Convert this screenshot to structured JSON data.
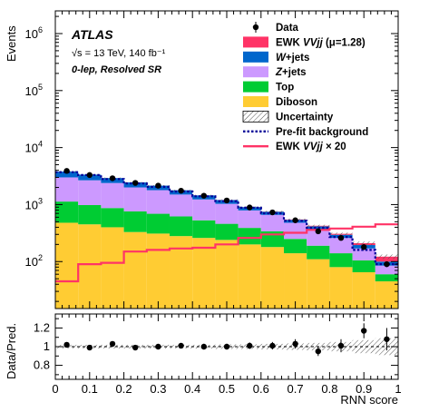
{
  "chart_data": {
    "type": "bar",
    "stacked": true,
    "experiment": "ATLAS",
    "energy_label": "√s = 13 TeV, 140 fb⁻¹",
    "region_label": "0-lep, Resolved SR",
    "xlabel": "RNN score",
    "ylabel_main": "Events",
    "ylabel_ratio": "Data/Pred.",
    "xlim": [
      0,
      1
    ],
    "ylim_main": [
      15,
      2500000
    ],
    "ylim_ratio": [
      0.65,
      1.35
    ],
    "yscale_main": "log",
    "x_ticks": [
      "0",
      "0.1",
      "0.2",
      "0.3",
      "0.4",
      "0.5",
      "0.6",
      "0.7",
      "0.8",
      "0.9",
      "1"
    ],
    "y_ticks_main": [
      {
        "base": "10",
        "exp": "2",
        "value": 100
      },
      {
        "base": "10",
        "exp": "3",
        "value": 1000
      },
      {
        "base": "10",
        "exp": "4",
        "value": 10000
      },
      {
        "base": "10",
        "exp": "5",
        "value": 100000
      },
      {
        "base": "10",
        "exp": "6",
        "value": 1000000
      }
    ],
    "y_ticks_ratio": [
      "0.8",
      "1",
      "1.2"
    ],
    "bin_edges": [
      0,
      0.0667,
      0.1333,
      0.2,
      0.2667,
      0.3333,
      0.4,
      0.4667,
      0.5333,
      0.6,
      0.6667,
      0.7333,
      0.8,
      0.8667,
      0.9333,
      1
    ],
    "series": [
      {
        "name": "Diboson",
        "color": "#FFCC33",
        "values": [
          480,
          450,
          400,
          330,
          310,
          280,
          260,
          240,
          200,
          180,
          140,
          110,
          80,
          65,
          45
        ]
      },
      {
        "name": "Top",
        "color": "#00CC33",
        "values": [
          650,
          530,
          470,
          430,
          380,
          340,
          270,
          220,
          190,
          160,
          110,
          80,
          60,
          40,
          15
        ]
      },
      {
        "name": "Z+jets",
        "color": "#CC99FF",
        "values": [
          1870,
          1690,
          1520,
          1240,
          1100,
          880,
          700,
          570,
          400,
          320,
          230,
          180,
          120,
          65,
          25
        ]
      },
      {
        "name": "W+jets",
        "color": "#0066CC",
        "values": [
          800,
          680,
          530,
          450,
          360,
          280,
          220,
          170,
          110,
          90,
          60,
          45,
          35,
          25,
          15
        ]
      },
      {
        "name": "EWK VVjj (μ=1.28)",
        "color": "#FF3366",
        "values": [
          3,
          3,
          3,
          3,
          3,
          3,
          3,
          4,
          5,
          6,
          8,
          10,
          12,
          15,
          22
        ]
      }
    ],
    "data_points": {
      "name": "Data",
      "x": [
        0.0333,
        0.1,
        0.1667,
        0.2333,
        0.3,
        0.3667,
        0.4333,
        0.5,
        0.5667,
        0.6333,
        0.7,
        0.7667,
        0.8333,
        0.9,
        0.9667
      ],
      "y": [
        3900,
        3300,
        2900,
        2400,
        2150,
        1750,
        1430,
        1180,
        890,
        730,
        530,
        340,
        260,
        180,
        90
      ]
    },
    "prefit_background": {
      "name": "Pre-fit background",
      "values": [
        3700,
        3300,
        2800,
        2350,
        2050,
        1700,
        1400,
        1150,
        880,
        700,
        520,
        390,
        270,
        160,
        90
      ]
    },
    "signal_x20": {
      "name": "EWK VVjj × 20",
      "color": "#FF3366",
      "values": [
        45,
        90,
        95,
        150,
        160,
        170,
        175,
        200,
        260,
        300,
        320,
        360,
        380,
        410,
        450
      ]
    },
    "ratio": {
      "x": [
        0.0333,
        0.1,
        0.1667,
        0.2333,
        0.3,
        0.3667,
        0.4333,
        0.5,
        0.5667,
        0.6333,
        0.7,
        0.7667,
        0.8333,
        0.9,
        0.9667
      ],
      "y": [
        1.02,
        0.99,
        1.03,
        0.99,
        1.0,
        1.01,
        1.0,
        1.0,
        1.01,
        1.01,
        1.03,
        0.95,
        1.01,
        1.17,
        1.08
      ],
      "err": [
        0.015,
        0.02,
        0.02,
        0.02,
        0.02,
        0.025,
        0.03,
        0.03,
        0.035,
        0.04,
        0.05,
        0.05,
        0.07,
        0.08,
        0.12
      ],
      "unc": [
        0.02,
        0.02,
        0.02,
        0.02,
        0.02,
        0.02,
        0.02,
        0.025,
        0.025,
        0.03,
        0.035,
        0.04,
        0.05,
        0.07,
        0.09
      ]
    },
    "legend": [
      {
        "label": "Data",
        "kind": "marker"
      },
      {
        "label": "EWK VVjj (μ=1.28)",
        "kind": "fill",
        "color": "#FF3366",
        "italic_part": "VVjj",
        "prefix": "EWK ",
        "suffix": " (μ=1.28)"
      },
      {
        "label": "W+jets",
        "kind": "fill",
        "color": "#0066CC",
        "italic_part": "W",
        "prefix": "",
        "suffix": "+jets"
      },
      {
        "label": "Z+jets",
        "kind": "fill",
        "color": "#CC99FF",
        "italic_part": "Z",
        "prefix": "",
        "suffix": "+jets"
      },
      {
        "label": "Top",
        "kind": "fill",
        "color": "#00CC33"
      },
      {
        "label": "Diboson",
        "kind": "fill",
        "color": "#FFCC33"
      },
      {
        "label": "Uncertainty",
        "kind": "hatch"
      },
      {
        "label": "Pre-fit background",
        "kind": "dashed",
        "color": "#000099"
      },
      {
        "label": "EWK VVjj × 20",
        "kind": "line",
        "color": "#FF3366",
        "italic_part": "VVjj",
        "prefix": "EWK ",
        "suffix": " × 20"
      }
    ],
    "legend_placement": "top-right"
  }
}
